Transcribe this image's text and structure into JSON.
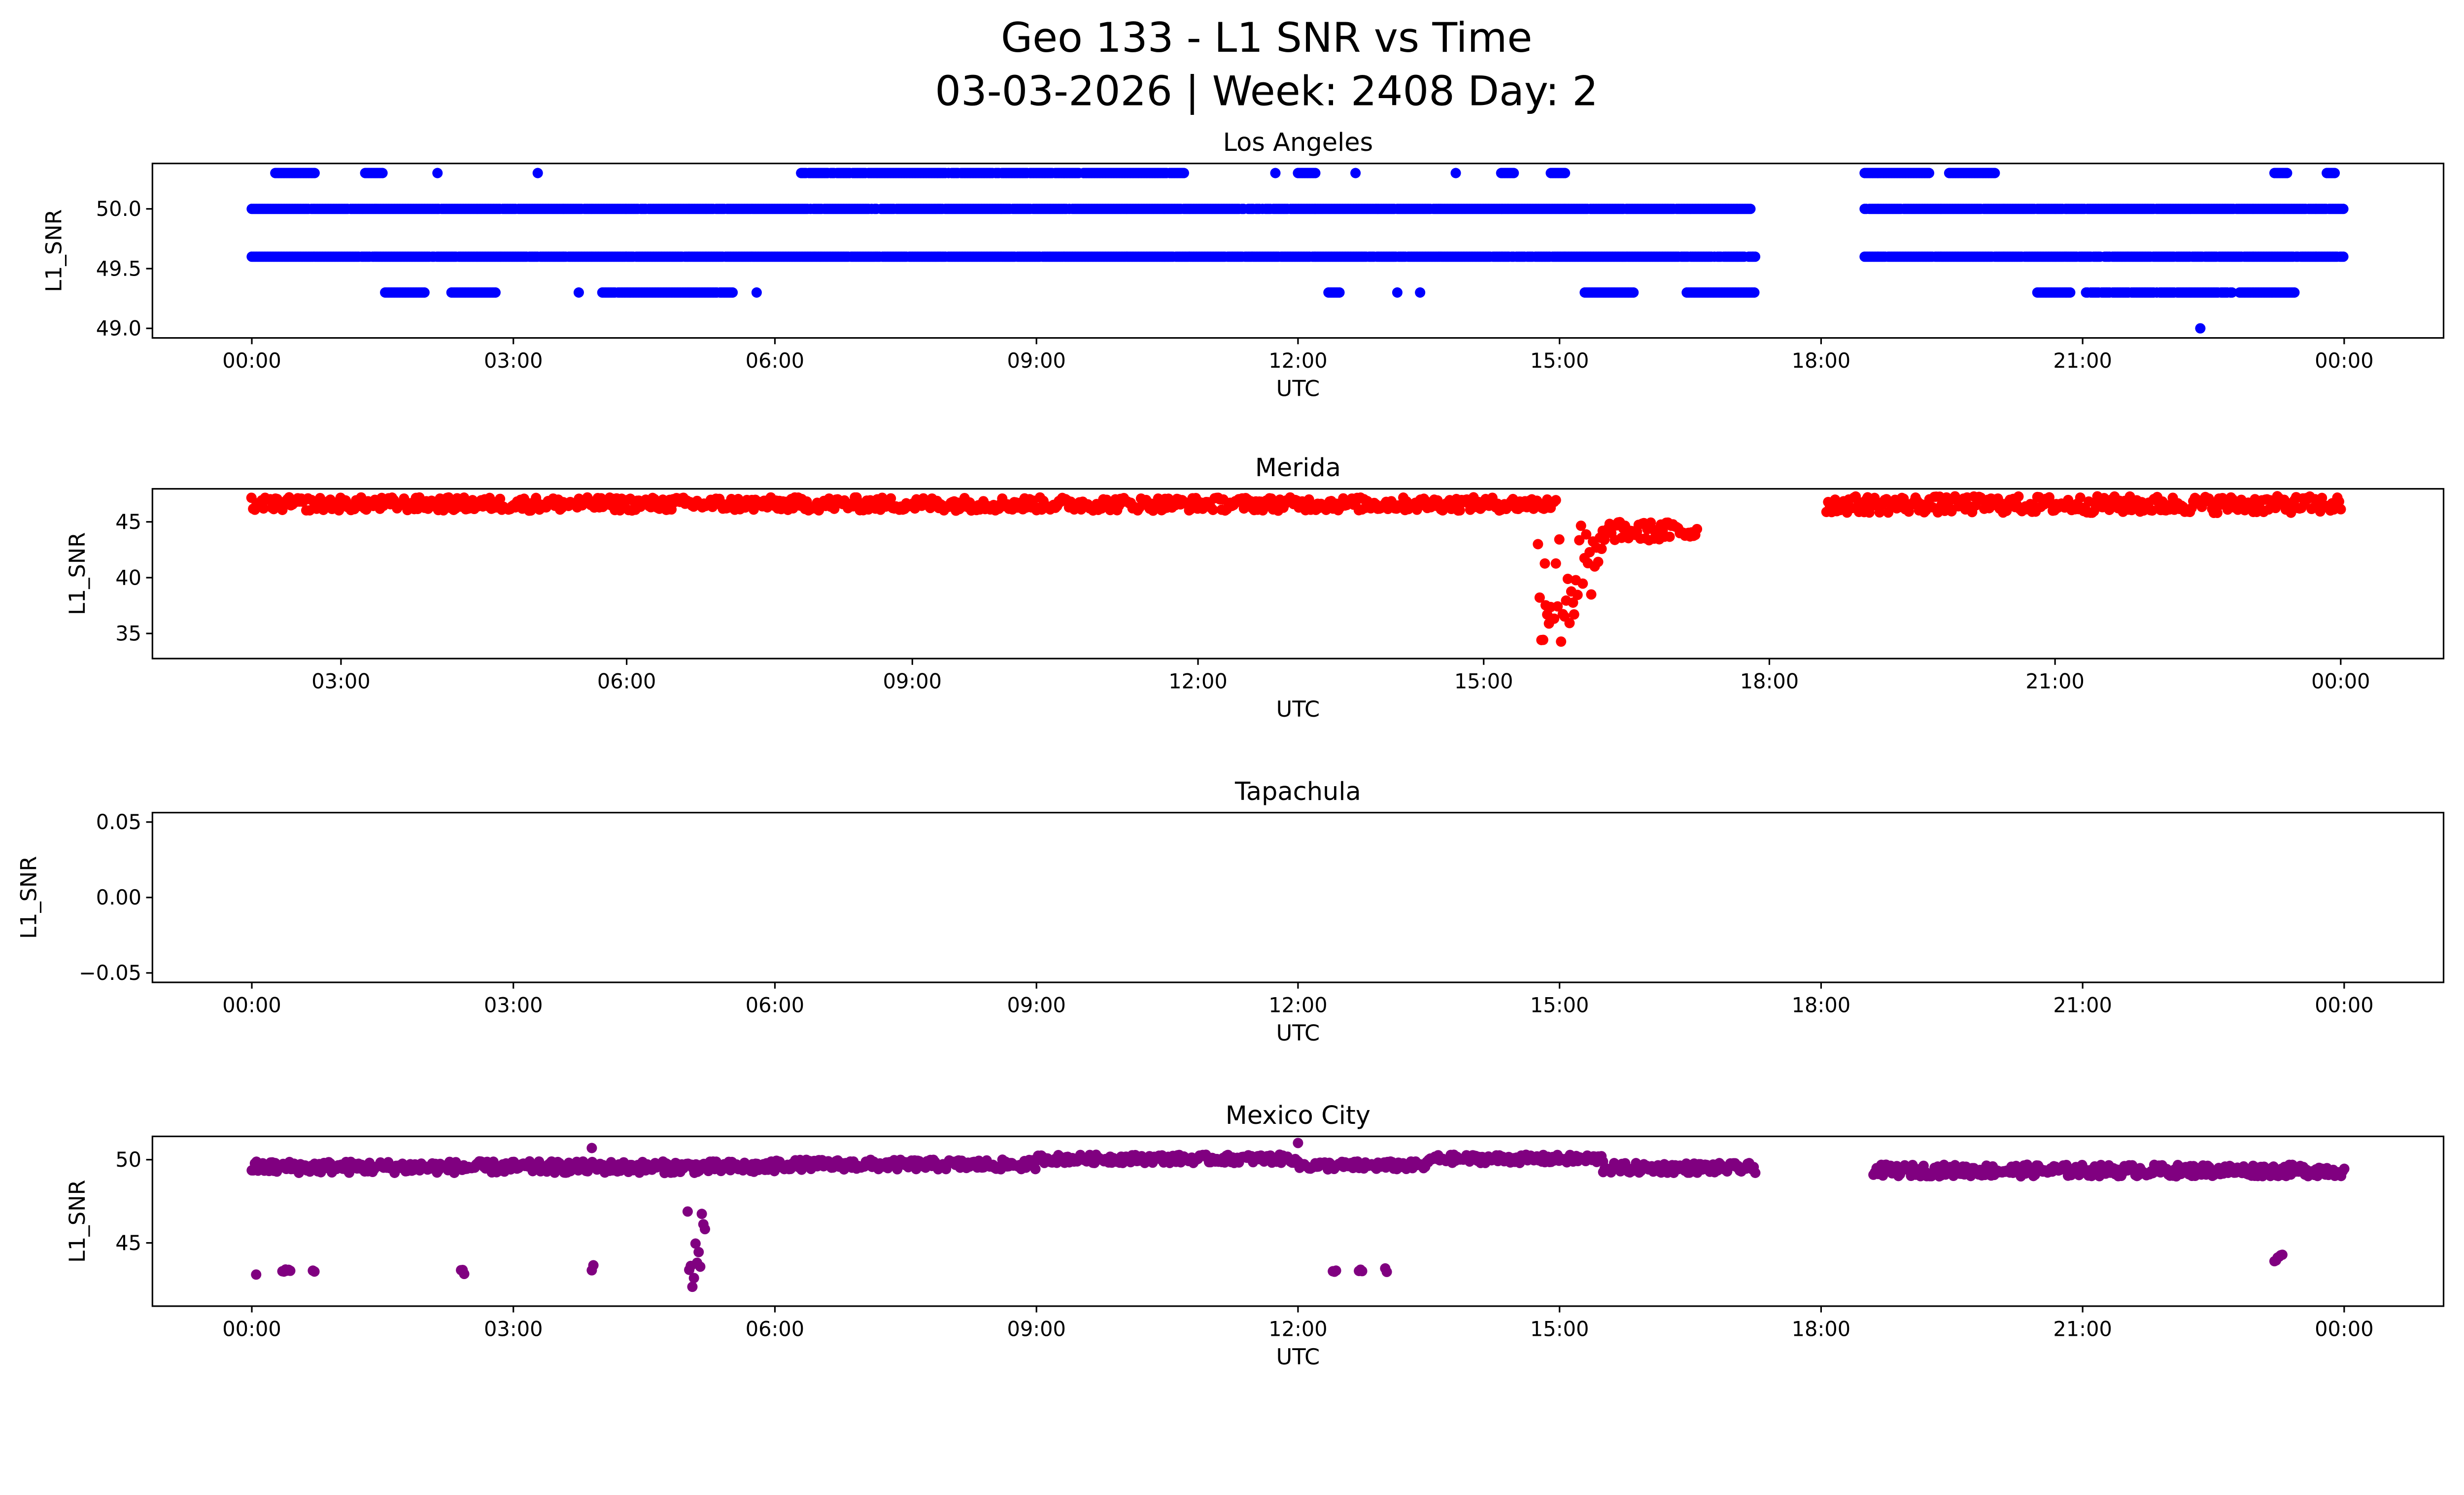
{
  "title": "Geo 133 - L1 SNR vs Time",
  "subtitle": "03-03-2026 | Week: 2408 Day: 2",
  "chart_data": [
    {
      "type": "scatter",
      "title": "Los Angeles",
      "xlabel": "UTC",
      "ylabel": "L1_SNR",
      "color": "#0000ff",
      "xlim": [
        -1.14,
        25.14
      ],
      "ylim": [
        48.92,
        50.38
      ],
      "xticks": [
        0,
        3,
        6,
        9,
        12,
        15,
        18,
        21,
        24
      ],
      "xtick_labels": [
        "00:00",
        "03:00",
        "06:00",
        "09:00",
        "12:00",
        "15:00",
        "18:00",
        "21:00",
        "00:00"
      ],
      "yticks": [
        49.0,
        49.5,
        50.0
      ],
      "ytick_labels": [
        "49.0",
        "49.5",
        "50.0"
      ],
      "segments_hours_snr": [
        [
          0,
          17.2,
          50.0,
          50.0
        ],
        [
          18.5,
          24,
          50.0,
          50.0
        ],
        [
          0,
          17.25,
          49.6,
          49.6
        ],
        [
          18.5,
          24,
          49.6,
          49.6
        ],
        [
          0.27,
          0.72,
          50.3,
          50.3
        ],
        [
          1.3,
          1.5,
          50.3,
          50.3
        ],
        [
          2.13,
          2.13,
          50.3,
          50.3
        ],
        [
          3.28,
          3.28,
          50.3,
          50.3
        ],
        [
          6.3,
          10.7,
          50.3,
          50.3
        ],
        [
          11.74,
          11.74,
          50.3,
          50.3
        ],
        [
          12.0,
          12.2,
          50.3,
          50.3
        ],
        [
          12.66,
          12.66,
          50.3,
          50.3
        ],
        [
          13.81,
          13.81,
          50.3,
          50.3
        ],
        [
          14.33,
          14.48,
          50.3,
          50.3
        ],
        [
          14.9,
          15.07,
          50.3,
          50.3
        ],
        [
          18.5,
          19.25,
          50.3,
          50.3
        ],
        [
          19.47,
          20.0,
          50.3,
          50.3
        ],
        [
          23.2,
          23.36,
          50.3,
          50.3
        ],
        [
          23.8,
          23.9,
          50.3,
          50.3
        ],
        [
          1.53,
          1.98,
          49.3,
          49.3
        ],
        [
          2.29,
          2.81,
          49.3,
          49.3
        ],
        [
          3.75,
          3.75,
          49.3,
          49.3
        ],
        [
          4.02,
          5.52,
          49.3,
          49.3
        ],
        [
          5.79,
          5.79,
          49.3,
          49.3
        ],
        [
          12.35,
          12.48,
          49.3,
          49.3
        ],
        [
          13.14,
          13.14,
          49.3,
          49.3
        ],
        [
          13.4,
          13.4,
          49.3,
          49.3
        ],
        [
          15.29,
          15.86,
          49.3,
          49.3
        ],
        [
          16.46,
          17.25,
          49.3,
          49.3
        ],
        [
          20.48,
          20.86,
          49.3,
          49.3
        ],
        [
          21.04,
          22.72,
          49.3,
          49.3
        ],
        [
          22.8,
          23.44,
          49.3,
          49.3
        ],
        [
          22.35,
          22.35,
          49.0,
          49.0
        ]
      ]
    },
    {
      "type": "scatter",
      "title": "Merida",
      "xlabel": "UTC",
      "ylabel": "L1_SNR",
      "color": "#ff0000",
      "xlim": [
        1.02,
        25.08
      ],
      "ylim": [
        32.75,
        47.96
      ],
      "xticks": [
        3,
        6,
        9,
        12,
        15,
        18,
        21,
        24
      ],
      "xtick_labels": [
        "03:00",
        "06:00",
        "09:00",
        "12:00",
        "15:00",
        "18:00",
        "21:00",
        "00:00"
      ],
      "yticks": [
        35,
        40,
        45
      ],
      "ytick_labels": [
        "35",
        "40",
        "45"
      ],
      "segments_hours_snr": [
        [
          2.06,
          15.77,
          46.0,
          47.2
        ],
        [
          15.57,
          15.65,
          34.0,
          45.5
        ],
        [
          15.65,
          15.95,
          33.3,
          44.5
        ],
        [
          15.95,
          16.25,
          35.5,
          45.0
        ],
        [
          16.25,
          17.25,
          43.3,
          45.0
        ],
        [
          18.6,
          24.0,
          45.8,
          47.3
        ]
      ]
    },
    {
      "type": "scatter",
      "title": "Tapachula",
      "xlabel": "UTC",
      "ylabel": "L1_SNR",
      "color": "#1f77b4",
      "xlim": [
        -1.14,
        25.14
      ],
      "ylim": [
        -0.05625,
        0.05625
      ],
      "xticks": [
        0,
        3,
        6,
        9,
        12,
        15,
        18,
        21,
        24
      ],
      "xtick_labels": [
        "00:00",
        "03:00",
        "06:00",
        "09:00",
        "12:00",
        "15:00",
        "18:00",
        "21:00",
        "00:00"
      ],
      "yticks": [
        -0.05,
        0,
        0.05
      ],
      "ytick_labels": [
        "−0.05",
        "0.00",
        "0.05"
      ],
      "segments_hours_snr": []
    },
    {
      "type": "scatter",
      "title": "Mexico City",
      "xlabel": "UTC",
      "ylabel": "L1_SNR",
      "color": "#800080",
      "xlim": [
        -1.14,
        25.14
      ],
      "ylim": [
        41.2,
        51.4
      ],
      "xticks": [
        0,
        3,
        6,
        9,
        12,
        15,
        18,
        21,
        24
      ],
      "xtick_labels": [
        "00:00",
        "03:00",
        "06:00",
        "09:00",
        "12:00",
        "15:00",
        "18:00",
        "21:00",
        "00:00"
      ],
      "yticks": [
        45,
        50
      ],
      "ytick_labels": [
        "45",
        "50"
      ],
      "segments_hours_snr": [
        [
          0,
          6,
          49.2,
          49.9
        ],
        [
          6,
          9,
          49.4,
          50.0
        ],
        [
          9,
          12,
          49.8,
          50.3
        ],
        [
          12,
          13.5,
          49.4,
          49.9
        ],
        [
          13.5,
          15.5,
          49.8,
          50.3
        ],
        [
          15.5,
          17.25,
          49.2,
          49.8
        ],
        [
          18.6,
          24,
          49.0,
          49.7
        ],
        [
          0.05,
          0.05,
          43.1,
          43.1
        ],
        [
          0.35,
          0.45,
          43.2,
          43.4
        ],
        [
          0.7,
          0.72,
          43.2,
          43.4
        ],
        [
          2.4,
          2.45,
          43.1,
          43.4
        ],
        [
          3.9,
          3.92,
          43.3,
          43.7
        ],
        [
          5.0,
          5.2,
          41.8,
          47.0
        ],
        [
          12.4,
          12.45,
          43.2,
          43.5
        ],
        [
          12.7,
          12.75,
          43.3,
          43.6
        ],
        [
          13.0,
          13.02,
          42.9,
          43.5
        ],
        [
          23.2,
          23.3,
          43.9,
          44.3
        ],
        [
          3.9,
          3.9,
          50.7,
          50.7
        ],
        [
          12.0,
          12.0,
          51.0,
          51.0
        ]
      ]
    }
  ]
}
